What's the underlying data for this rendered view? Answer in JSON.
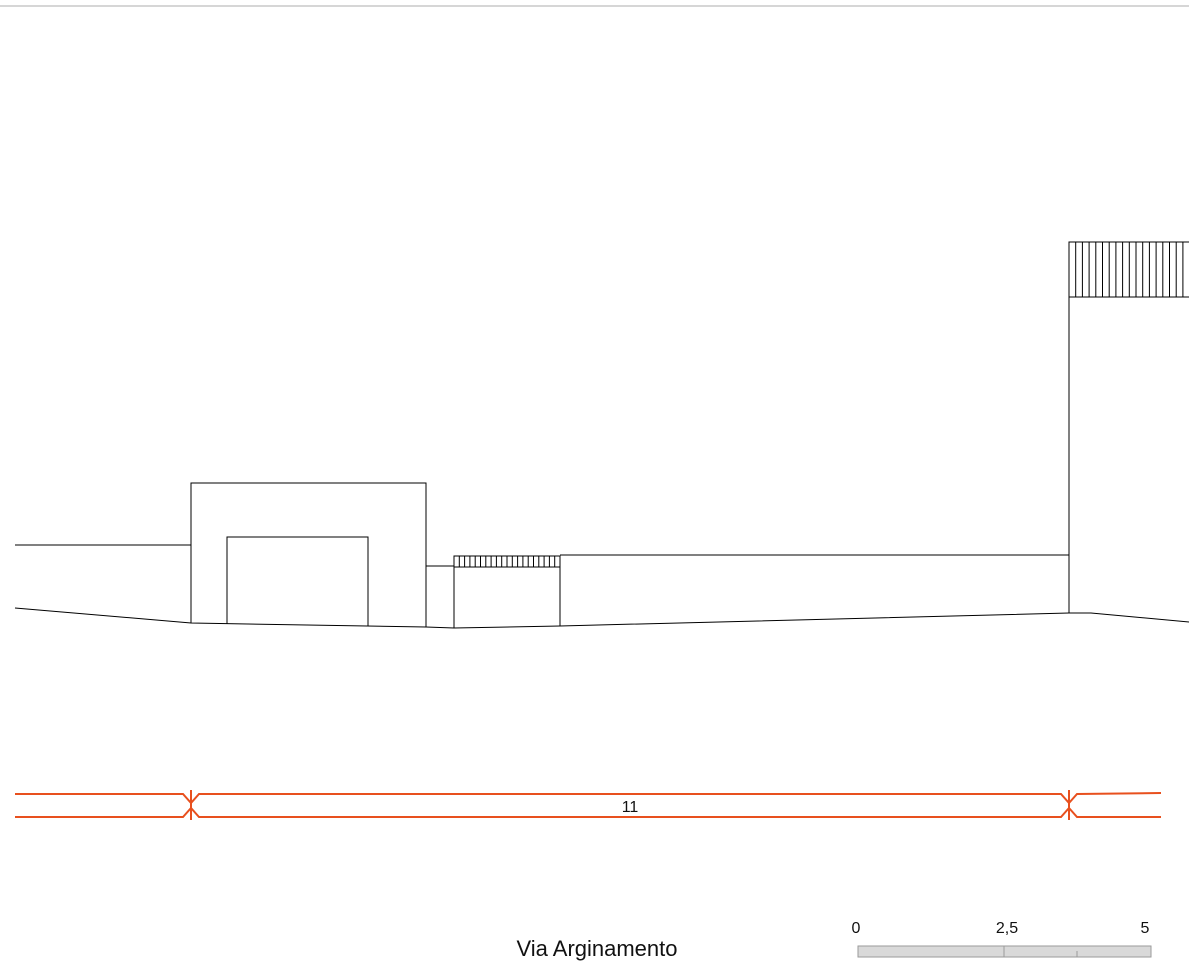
{
  "drawing": {
    "street_name": "Via Arginamento",
    "dimension_label": "11",
    "scale_bar": {
      "tick_labels": [
        "0",
        "2,5",
        "5"
      ]
    }
  },
  "colors": {
    "line": "#000000",
    "dimension": "#e8501e",
    "scale_bar_fill": "#d9d9d9",
    "scale_bar_stroke": "#9a9a9a",
    "top_rule": "#c8c8c8"
  }
}
